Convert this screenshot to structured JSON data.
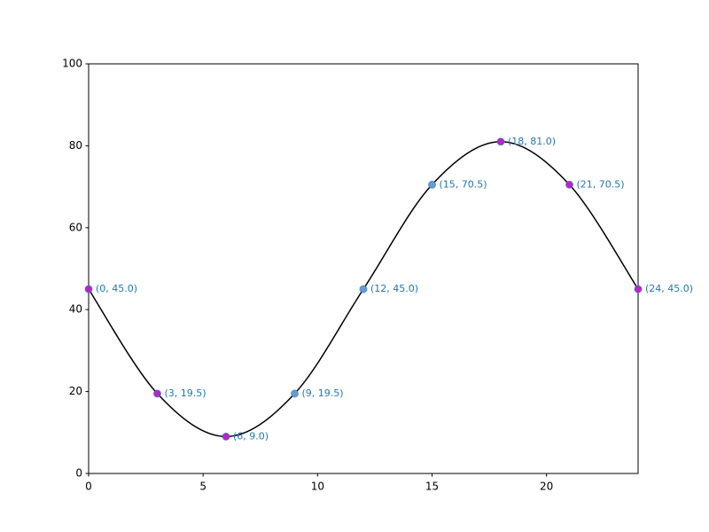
{
  "chart_data": {
    "type": "line",
    "x": [
      0,
      3,
      6,
      9,
      12,
      15,
      18,
      21,
      24
    ],
    "series": [
      {
        "color": "#000000",
        "values": [
          45.0,
          19.5,
          9.0,
          19.5,
          45.0,
          70.5,
          81.0,
          70.5,
          45.0
        ],
        "value_labels": [
          "(0, 45.0)",
          "(3, 19.5)",
          "(6, 9.0)",
          "(9, 19.5)",
          "(12, 45.0)",
          "(15, 70.5)",
          "(18, 81.0)",
          "(21, 70.5)",
          "(24, 45.0)"
        ],
        "marker_colors": [
          "#c020d0",
          "#c020d0",
          "#c020d0",
          "#6a9bd0",
          "#6a9bd0",
          "#6a9bd0",
          "#c020d0",
          "#c020d0",
          "#c020d0"
        ]
      }
    ],
    "xlim": [
      0,
      24
    ],
    "ylim": [
      0,
      100
    ],
    "xticks": [
      0,
      5,
      10,
      15,
      20
    ],
    "yticks": [
      0,
      20,
      40,
      60,
      80,
      100
    ],
    "grid": false
  }
}
